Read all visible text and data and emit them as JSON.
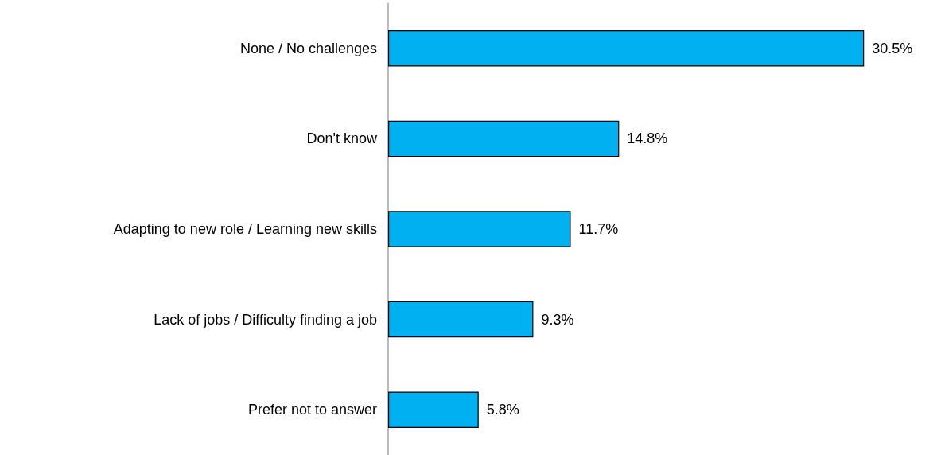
{
  "chart_data": {
    "type": "bar",
    "orientation": "horizontal",
    "categories": [
      "None / No challenges",
      "Don't know",
      "Adapting to new role / Learning new skills",
      "Lack of jobs / Difficulty finding a job",
      "Prefer not to answer"
    ],
    "values": [
      30.5,
      14.8,
      11.7,
      9.3,
      5.8
    ],
    "value_labels": [
      "30.5%",
      "14.8%",
      "11.7%",
      "9.3%",
      "5.8%"
    ],
    "color": "#00b0f0",
    "tick_labels": "y"
  }
}
